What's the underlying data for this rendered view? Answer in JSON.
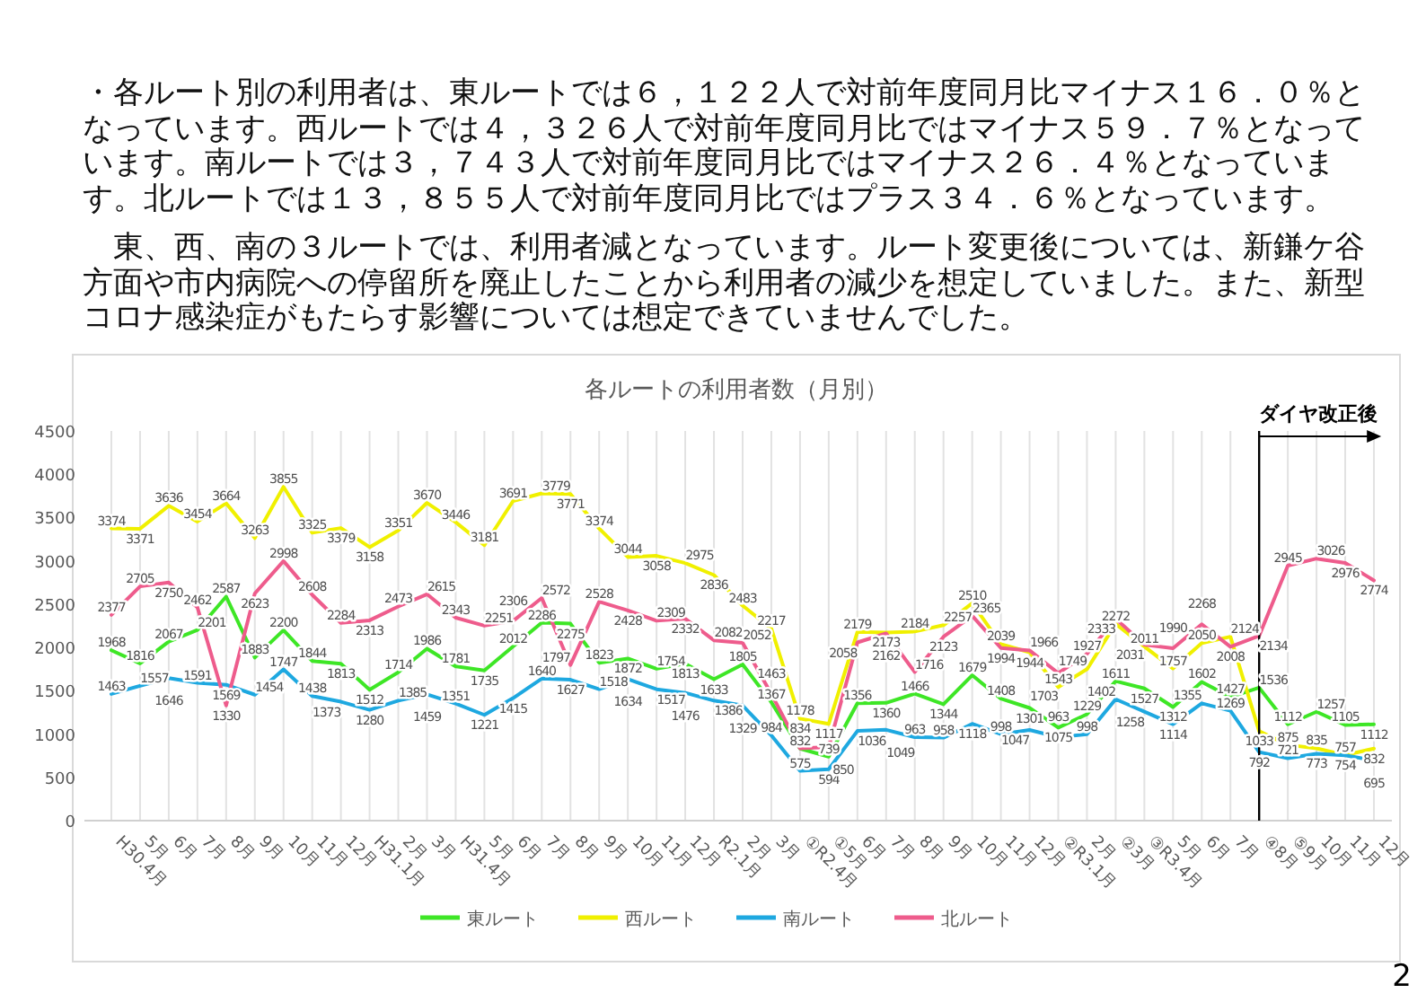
{
  "chart_data": {
    "type": "line",
    "title": "各ルートの利用者数（月別）",
    "annotations": [
      "・各ルート別の利用者は、東ルートでは６，１２２人で対前年度同月比マイナス１６．０％となっています。西ルートでは４，３２６人で対前年度同月比ではマイナス５９．７％となっています。南ルートでは３，７４３人で対前年度同月比ではマイナス２６．４％となっています。北ルートでは１３，８５５人で対前年度同月比ではプラス３４．６％となっています。",
      "　東、西、南の３ルートでは、利用者減となっています。ルート変更後については、新鎌ケ谷方面や市内病院への停留所を廃止したことから利用者の減少を想定していました。また、新型コロナ感染症がもたらす影響については想定できていませんでした。",
      "2"
    ],
    "categories": [
      "H30.4月",
      "5月",
      "6月",
      "7月",
      "8月",
      "9月",
      "10月",
      "11月",
      "12月",
      "H31.1月",
      "2月",
      "3月",
      "H31.4月",
      "5月",
      "6月",
      "7月",
      "8月",
      "9月",
      "10月",
      "11月",
      "12月",
      "R2.1月",
      "2月",
      "3月",
      "①R2.4月",
      "①5月",
      "6月",
      "7月",
      "8月",
      "9月",
      "10月",
      "11月",
      "12月",
      "②R3.1月",
      "2月",
      "②3月",
      "③R3.4月",
      "5月",
      "6月",
      "7月",
      "④8月",
      "⑤9月",
      "10月",
      "11月",
      "12月"
    ],
    "series": [
      {
        "name": "東ルート",
        "color": "#3ee626",
        "values": [
          1968,
          1816,
          2067,
          2201,
          2587,
          1883,
          2200,
          1844,
          1813,
          1512,
          1714,
          1986,
          1781,
          1735,
          2012,
          2286,
          2275,
          1823,
          1872,
          1754,
          1813,
          1633,
          1805,
          1367,
          832,
          739,
          1356,
          1360,
          1466,
          1344,
          1679,
          1408,
          1301,
          1075,
          1229,
          1611,
          1527,
          1312,
          1602,
          1427,
          1536,
          1112,
          1257,
          1105,
          1112
        ]
      },
      {
        "name": "西ルート",
        "color": "#f0f000",
        "values": [
          3374,
          3371,
          3636,
          3454,
          3664,
          3263,
          3855,
          3325,
          3379,
          3158,
          3351,
          3670,
          3446,
          3181,
          3691,
          3779,
          3771,
          3374,
          3044,
          3058,
          2975,
          2836,
          2483,
          2217,
          1178,
          1117,
          2179,
          2173,
          2184,
          2257,
          2510,
          2039,
          1944,
          1543,
          1749,
          2272,
          2011,
          1757,
          2050,
          2124,
          1033,
          875,
          835,
          757,
          832
        ]
      },
      {
        "name": "南ルート",
        "color": "#1ea8e0",
        "values": [
          1463,
          1557,
          1646,
          1591,
          1569,
          1454,
          1747,
          1438,
          1373,
          1280,
          1385,
          1459,
          1351,
          1221,
          1415,
          1640,
          1627,
          1518,
          1634,
          1517,
          1476,
          1386,
          1329,
          984,
          575,
          594,
          1036,
          1049,
          963,
          958,
          1118,
          998,
          1047,
          963,
          998,
          1402,
          1258,
          1114,
          1355,
          1269,
          792,
          721,
          773,
          754,
          695
        ]
      },
      {
        "name": "北ルート",
        "color": "#ee5c8c",
        "values": [
          2377,
          2705,
          2750,
          2462,
          1330,
          2623,
          2998,
          2608,
          2284,
          2313,
          2473,
          2615,
          2343,
          2251,
          2306,
          2572,
          1797,
          2528,
          2428,
          2309,
          2332,
          2082,
          2052,
          1463,
          834,
          850,
          2058,
          2162,
          1716,
          2123,
          2365,
          1994,
          1966,
          1703,
          1927,
          2333,
          2031,
          1990,
          2268,
          2008,
          2134,
          2945,
          3026,
          2976,
          2774
        ]
      }
    ],
    "ylim": [
      0,
      4500
    ],
    "yticks": [
      0,
      500,
      1000,
      1500,
      2000,
      2500,
      3000,
      3500,
      4000,
      4500
    ],
    "ref_lines": [
      {
        "axis": "x",
        "value": "④8月",
        "label": "ダイヤ改正後",
        "color": "#000000"
      }
    ],
    "grid": "x",
    "legend": "bottom",
    "data_labels": true,
    "marker": "none"
  }
}
